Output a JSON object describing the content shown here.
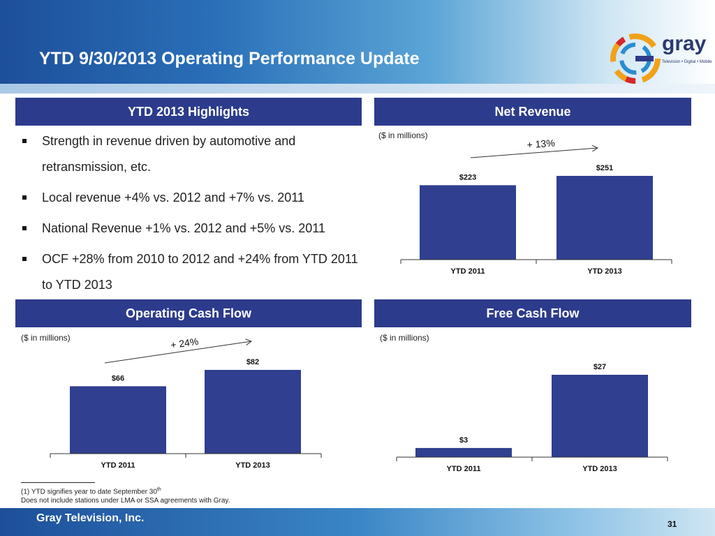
{
  "header": {
    "title": "YTD 9/30/2013 Operating Performance Update",
    "logo_text": "gray",
    "logo_tagline": "Television • Digital • Mobile"
  },
  "highlights": {
    "heading": "YTD 2013 Highlights",
    "bullets": [
      "Strength in revenue driven by automotive and retransmission, etc.",
      "Local revenue +4% vs. 2012 and +7% vs. 2011",
      "National Revenue +1% vs. 2012 and +5% vs. 2011",
      "OCF +28% from 2010 to 2012 and +24% from YTD 2011 to YTD 2013"
    ]
  },
  "colors": {
    "bar": "#303f8f",
    "header_fill": "#2d3b8c"
  },
  "chart_data": [
    {
      "type": "bar",
      "title": "Net Revenue",
      "unit_note": "($ in millions)",
      "categories": [
        "YTD 2011",
        "YTD 2013"
      ],
      "values": [
        223,
        251
      ],
      "data_labels": [
        "$223",
        "$251"
      ],
      "growth_label": "+ 13%",
      "ylim": [
        0,
        251
      ]
    },
    {
      "type": "bar",
      "title": "Operating Cash Flow",
      "unit_note": "($ in millions)",
      "categories": [
        "YTD 2011",
        "YTD 2013"
      ],
      "values": [
        66,
        82
      ],
      "data_labels": [
        "$66",
        "$82"
      ],
      "growth_label": "+ 24%",
      "ylim": [
        0,
        82
      ]
    },
    {
      "type": "bar",
      "title": "Free Cash Flow",
      "unit_note": "($ in millions)",
      "categories": [
        "YTD 2011",
        "YTD 2013"
      ],
      "values": [
        3,
        27
      ],
      "data_labels": [
        "$3",
        "$27"
      ],
      "ylim": [
        0,
        27
      ]
    }
  ],
  "footnotes": {
    "line1": "(1)    YTD signifies year to date September 30",
    "line1_sup": "th",
    "line2": "Does not include stations under LMA or SSA agreements with Gray."
  },
  "footer": {
    "company": "Gray Television, Inc.",
    "page": "31"
  }
}
